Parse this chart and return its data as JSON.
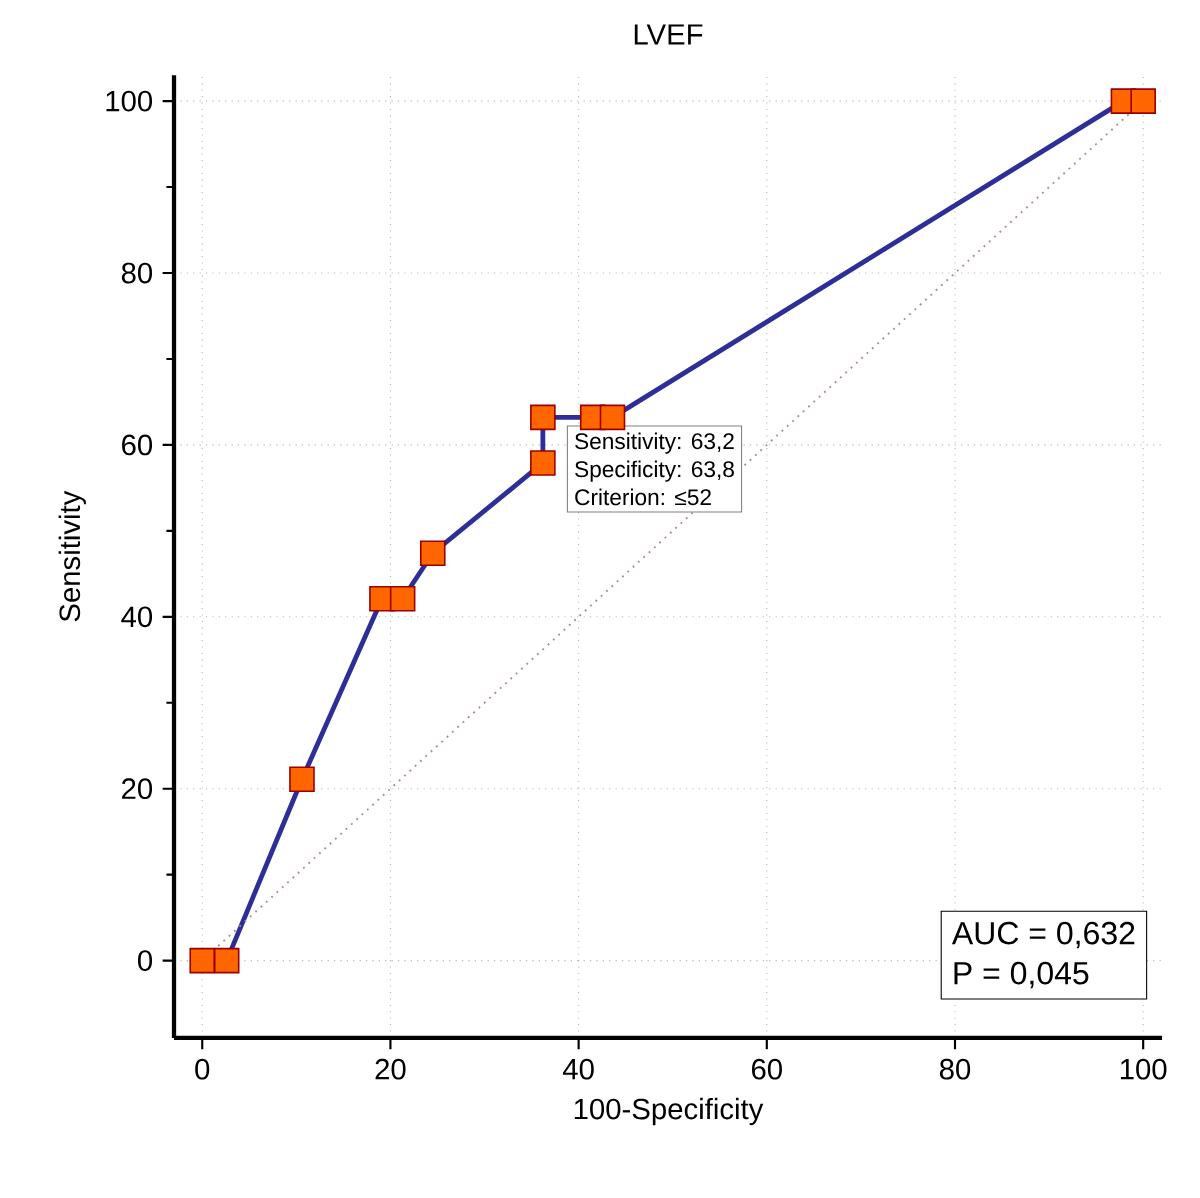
{
  "chart_data": {
    "type": "line",
    "title": "LVEF",
    "xlabel": "100-Specificity",
    "ylabel": "Sensitivity",
    "xlim": [
      -3,
      102
    ],
    "ylim": [
      -9,
      103
    ],
    "xticks": [
      0,
      20,
      40,
      60,
      80,
      100
    ],
    "yticks": [
      0,
      20,
      40,
      60,
      80,
      100
    ],
    "grid": true,
    "series": [
      {
        "color": "#2e2e99",
        "marker": "square",
        "colors": [
          "#ff6600",
          "#ff6600",
          "#ff6600",
          "#ff6600",
          "#ff6600",
          "#ff6600",
          "#ff6600",
          "#ff6600",
          "#ff6600",
          "#ff6600",
          "#ff6600",
          "#ff6600"
        ],
        "x": [
          0,
          2.6,
          10.6,
          19.1,
          21.3,
          24.5,
          36.2,
          36.2,
          41.5,
          43.6,
          97.9,
          100
        ],
        "values": [
          0,
          0,
          21.1,
          42.1,
          42.1,
          47.4,
          57.9,
          63.2,
          63.2,
          63.2,
          100,
          100
        ]
      },
      {
        "color": "#b08a8a",
        "marker": "none",
        "line_style": "dotted",
        "x": [
          0,
          100
        ],
        "values": [
          0,
          100
        ]
      }
    ],
    "annotations": [
      "AUC = 0,632",
      "P = 0,045",
      {
        "text": "Sensitivity: 63,2",
        "x": 36.2,
        "y": 63.2
      },
      "Specificity: 63,8",
      "Criterion: ≤52"
    ]
  }
}
